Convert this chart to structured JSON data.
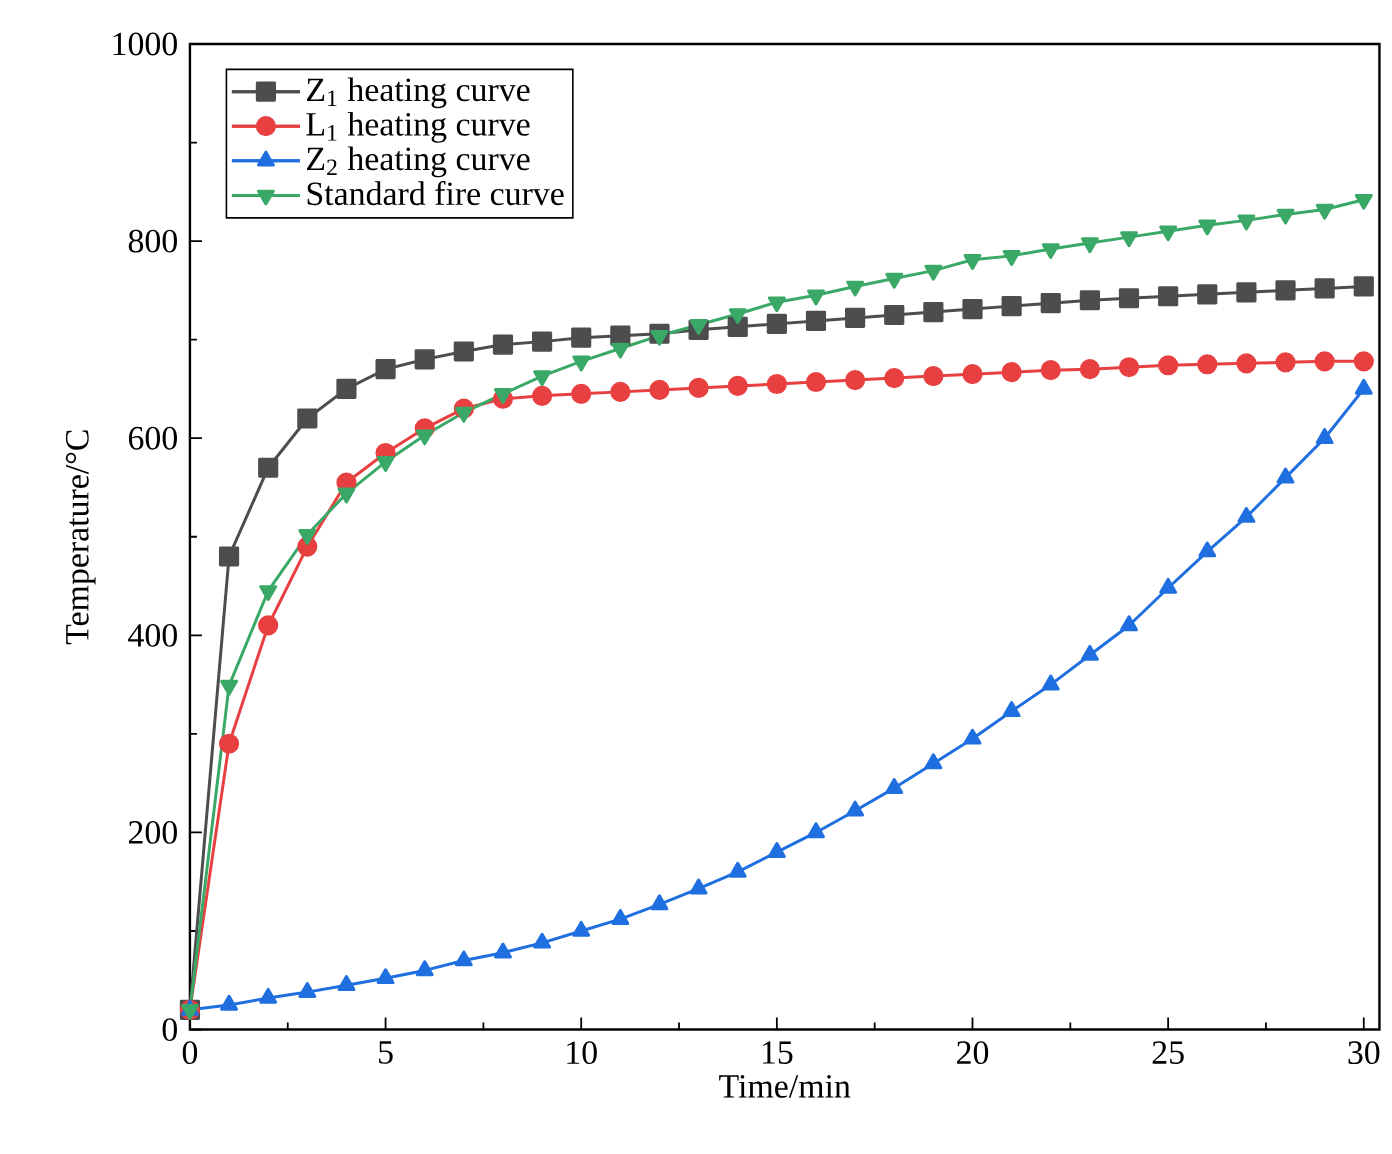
{
  "chart_data": {
    "type": "line",
    "xlabel": "Time/min",
    "ylabel": "Temperature/°C",
    "x": [
      0,
      1,
      2,
      3,
      4,
      5,
      6,
      7,
      8,
      9,
      10,
      11,
      12,
      13,
      14,
      15,
      16,
      17,
      18,
      19,
      20,
      21,
      22,
      23,
      24,
      25,
      26,
      27,
      28,
      29,
      30
    ],
    "xlim": [
      0,
      30.4
    ],
    "ylim": [
      0,
      1000
    ],
    "xticks": [
      0,
      5,
      10,
      15,
      20,
      25,
      30
    ],
    "yticks": [
      0,
      200,
      400,
      600,
      800,
      1000
    ],
    "grid": false,
    "legend": "top left",
    "series": [
      {
        "name": "Z$_{1}$ heating curve",
        "color": "#4d4d4d",
        "marker": "square",
        "values": [
          20,
          480,
          570,
          620,
          650,
          670,
          680,
          688,
          695,
          698,
          702,
          704,
          706,
          710,
          713,
          716,
          719,
          722,
          725,
          728,
          731,
          734,
          737,
          740,
          742,
          744,
          746,
          748,
          750,
          752,
          754
        ]
      },
      {
        "name": "L$_{1}$ heating curve",
        "color": "#e84040",
        "marker": "circle",
        "values": [
          20,
          290,
          410,
          490,
          555,
          585,
          610,
          630,
          640,
          643,
          645,
          647,
          649,
          651,
          653,
          655,
          657,
          659,
          661,
          663,
          665,
          667,
          669,
          670,
          672,
          674,
          675,
          676,
          677,
          678,
          678
        ]
      },
      {
        "name": "Z$_{2}$ heating curve",
        "color": "#1f6fe0",
        "marker": "triangle",
        "values": [
          20,
          25,
          32,
          38,
          45,
          52,
          60,
          70,
          78,
          88,
          100,
          112,
          127,
          143,
          160,
          180,
          200,
          222,
          245,
          270,
          295,
          323,
          350,
          380,
          410,
          448,
          485,
          520,
          560,
          600,
          650
        ]
      },
      {
        "name": "Standard fire curve",
        "color": "#3aa866",
        "marker": "triangle down",
        "values": [
          20,
          349,
          445,
          502,
          544,
          576,
          603,
          626,
          645,
          663,
          678,
          691,
          704,
          715,
          726,
          738,
          745,
          754,
          762,
          770,
          781,
          785,
          792,
          798,
          804,
          810,
          816,
          821,
          827,
          832,
          842
        ]
      }
    ]
  }
}
